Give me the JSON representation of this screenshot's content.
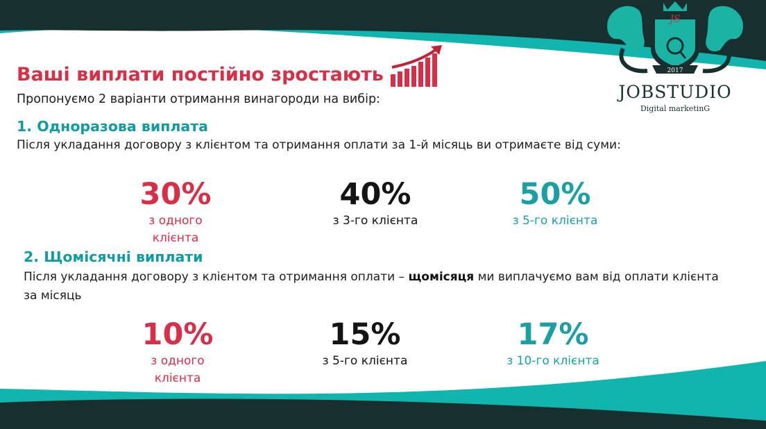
{
  "header": {
    "title": "Ваші виплати постійно зростають",
    "growth_icon": "bar-chart-growth-icon"
  },
  "logo": {
    "year": "2017",
    "monogram": "JS",
    "name": "JOBSTUDIO",
    "tagline": "Digital marketinG"
  },
  "intro": "Пропонуємо 2 варіанти отримання винагороди на вибір:",
  "option1": {
    "heading": "1. Одноразова виплата",
    "description": "Після укладання договору з клієнтом та отримання оплати за 1-й місяць ви отримаєте від суми:",
    "stats": [
      {
        "value": "30%",
        "label_line1": "з одного",
        "label_line2": "клієнта"
      },
      {
        "value": "40%",
        "label_line1": "з 3-го клієнта"
      },
      {
        "value": "50%",
        "label_line1": "з 5-го клієнта"
      }
    ]
  },
  "option2": {
    "heading": "2. Щомісячні виплати",
    "description_before": "Після укладання договору з клієнтом та отримання оплати – ",
    "description_bold": "щомісяця",
    "description_after": " ми виплачуємо вам від оплати клієнта за місяць",
    "stats": [
      {
        "value": "10%",
        "label_line1": "з одного",
        "label_line2": "клієнта"
      },
      {
        "value": "15%",
        "label_line1": "з 5-го клієнта"
      },
      {
        "value": "17%",
        "label_line1": "з 10-го клієнта"
      }
    ]
  },
  "colors": {
    "accent_red": "#d62f47",
    "accent_teal": "#1a9fa3",
    "dark_band": "#17302f"
  }
}
